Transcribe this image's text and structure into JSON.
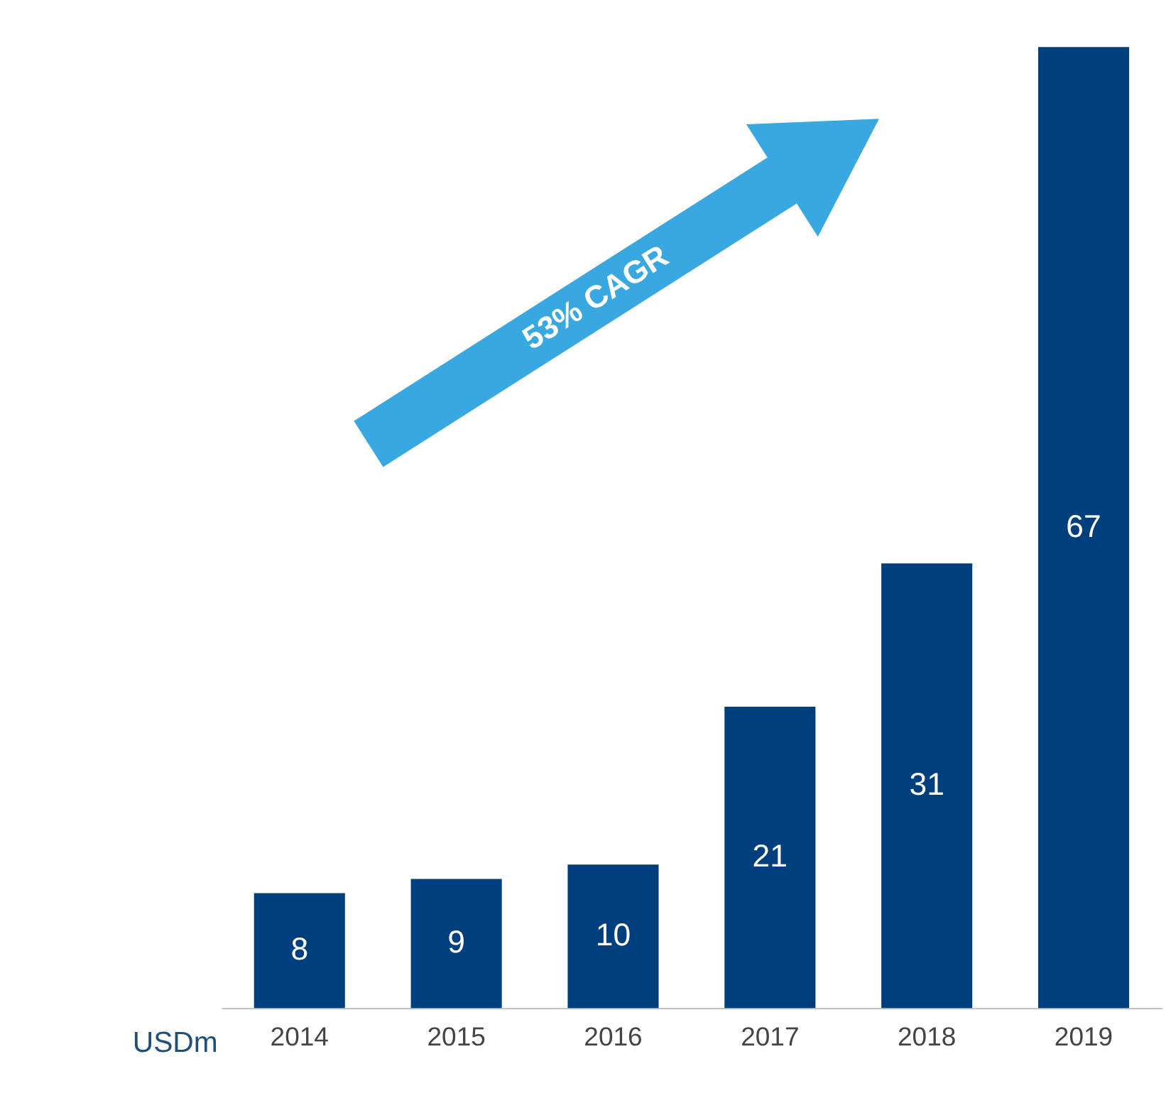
{
  "chart_data": {
    "type": "bar",
    "categories": [
      "2014",
      "2015",
      "2016",
      "2017",
      "2018",
      "2019"
    ],
    "values": [
      8,
      9,
      10,
      21,
      31,
      67
    ],
    "color": "#003f7d",
    "data_labels": true,
    "relative": false,
    "ylabel": "USDm",
    "annotations": [
      "53% CAGR"
    ],
    "grid": false
  }
}
